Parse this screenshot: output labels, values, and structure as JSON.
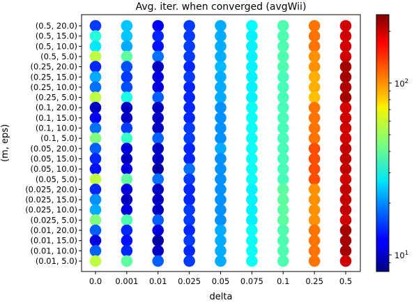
{
  "chart_data": {
    "type": "scatter",
    "title": "Avg. iter. when converged (avgWii)",
    "xlabel": "delta",
    "ylabel": "(m, eps)",
    "categories": [
      "0.0",
      "0.001",
      "0.01",
      "0.025",
      "0.05",
      "0.075",
      "0.1",
      "0.25",
      "0.5"
    ],
    "rows": [
      "(0.5, 20.0)",
      "(0.5, 15.0)",
      "(0.5, 10.0)",
      "(0.5, 5.0)",
      "(0.25, 20.0)",
      "(0.25, 15.0)",
      "(0.25, 10.0)",
      "(0.25, 5.0)",
      "(0.1, 20.0)",
      "(0.1, 15.0)",
      "(0.1, 10.0)",
      "(0.1, 5.0)",
      "(0.05, 20.0)",
      "(0.05, 15.0)",
      "(0.05, 10.0)",
      "(0.05, 5.0)",
      "(0.025, 20.0)",
      "(0.025, 15.0)",
      "(0.025, 10.0)",
      "(0.025, 5.0)",
      "(0.01, 20.0)",
      "(0.01, 15.0)",
      "(0.01, 10.0)",
      "(0.01, 5.0)"
    ],
    "values": [
      [
        15,
        24,
        12,
        15,
        22,
        29,
        38,
        110,
        190
      ],
      [
        33,
        24,
        14,
        15,
        22,
        28,
        38,
        110,
        190
      ],
      [
        27,
        22,
        13,
        15,
        22,
        28,
        38,
        110,
        190
      ],
      [
        55,
        40,
        18,
        15,
        22,
        28,
        38,
        100,
        190
      ],
      [
        14,
        16,
        10,
        14,
        23,
        28,
        38,
        100,
        220
      ],
      [
        22,
        15,
        11,
        15,
        22,
        28,
        37,
        90,
        220
      ],
      [
        18,
        16,
        11,
        14,
        22,
        28,
        37,
        90,
        210
      ],
      [
        55,
        32,
        17,
        14,
        22,
        28,
        37,
        85,
        220
      ],
      [
        10,
        10,
        10,
        14,
        20,
        30,
        37,
        110,
        190
      ],
      [
        12,
        10,
        10,
        14,
        20,
        30,
        37,
        110,
        190
      ],
      [
        18,
        15,
        10,
        15,
        20,
        30,
        37,
        110,
        190
      ],
      [
        45,
        35,
        17,
        15,
        20,
        30,
        37,
        110,
        190
      ],
      [
        17,
        11,
        10,
        14,
        22,
        30,
        37,
        125,
        200
      ],
      [
        14,
        10,
        10,
        14,
        20,
        30,
        37,
        125,
        200
      ],
      [
        13,
        11,
        9,
        18,
        20,
        30,
        37,
        125,
        200
      ],
      [
        55,
        40,
        18,
        15,
        20,
        30,
        37,
        125,
        190
      ],
      [
        14,
        11,
        10,
        14,
        20,
        28,
        40,
        100,
        200
      ],
      [
        20,
        10,
        10,
        14,
        20,
        28,
        40,
        100,
        200
      ],
      [
        22,
        11,
        10,
        15,
        20,
        28,
        40,
        100,
        200
      ],
      [
        45,
        38,
        17,
        15,
        20,
        28,
        40,
        100,
        190
      ],
      [
        17,
        14,
        11,
        14,
        22,
        30,
        38,
        110,
        220
      ],
      [
        11,
        13,
        9,
        15,
        22,
        30,
        38,
        110,
        220
      ],
      [
        17,
        14,
        10,
        14,
        22,
        30,
        38,
        110,
        220
      ],
      [
        55,
        40,
        17,
        15,
        22,
        30,
        38,
        110,
        190
      ]
    ],
    "scale": "log",
    "colormap": "jet",
    "clim": [
      8,
      250
    ],
    "colorbar_ticks": [
      {
        "value": 10,
        "label": "10",
        "sup": "1"
      },
      {
        "value": 100,
        "label": "10",
        "sup": "2"
      }
    ],
    "colorbar_minor_ticks": [
      9,
      20,
      30,
      40,
      50,
      60,
      70,
      80,
      90,
      200
    ]
  }
}
